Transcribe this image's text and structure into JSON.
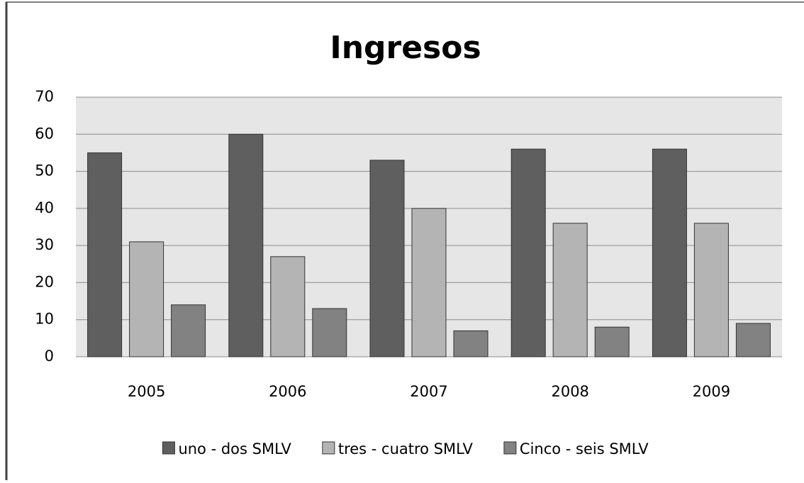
{
  "chart_data": {
    "type": "bar",
    "title": "Ingresos",
    "categories": [
      "2005",
      "2006",
      "2007",
      "2008",
      "2009"
    ],
    "series": [
      {
        "name": "uno - dos SMLV",
        "color": "#5f5f5f",
        "values": [
          55,
          60,
          53,
          56,
          56
        ]
      },
      {
        "name": "tres - cuatro SMLV",
        "color": "#b4b4b4",
        "values": [
          31,
          27,
          40,
          36,
          36
        ]
      },
      {
        "name": "Cinco - seis SMLV",
        "color": "#828282",
        "values": [
          14,
          13,
          7,
          8,
          9
        ]
      }
    ],
    "ylim": [
      0,
      70
    ],
    "yticks": [
      0,
      10,
      20,
      30,
      40,
      50,
      60,
      70
    ],
    "grid": true,
    "legend": "bottom"
  }
}
